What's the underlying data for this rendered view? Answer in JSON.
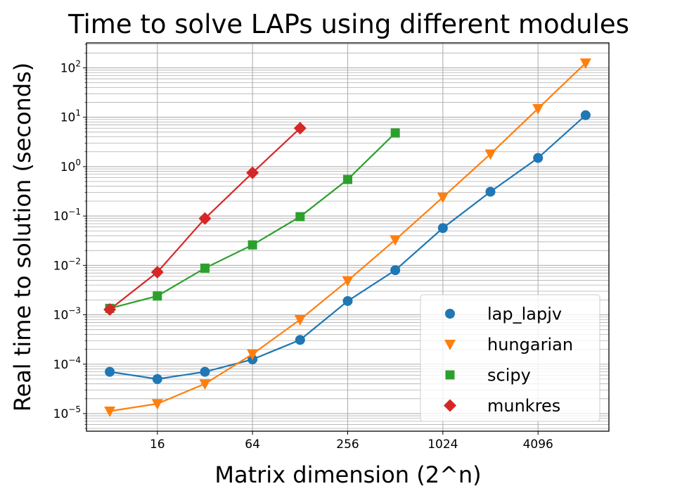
{
  "chart_data": {
    "type": "scatter",
    "title": "Time to solve LAPs using different modules",
    "xlabel": "Matrix dimension (2^n)",
    "ylabel": "Real time to solution (seconds)",
    "xscale": "log2",
    "yscale": "log10",
    "xlim": [
      5.7,
      11500
    ],
    "ylim": [
      4.4e-06,
      320
    ],
    "grid": true,
    "legend_placement": "lower right",
    "x_ticks": [
      16,
      64,
      256,
      1024,
      4096
    ],
    "x_tick_labels": [
      "16",
      "64",
      "256",
      "1024",
      "4096"
    ],
    "y_ticks": [
      1e-05,
      0.0001,
      0.001,
      0.01,
      0.1,
      1,
      10,
      100
    ],
    "y_tick_labels": [
      {
        "base": "10",
        "exp": "−5"
      },
      {
        "base": "10",
        "exp": "−4"
      },
      {
        "base": "10",
        "exp": "−3"
      },
      {
        "base": "10",
        "exp": "−2"
      },
      {
        "base": "10",
        "exp": "−1"
      },
      {
        "base": "10",
        "exp": "0"
      },
      {
        "base": "10",
        "exp": "1"
      },
      {
        "base": "10",
        "exp": "2"
      }
    ],
    "series": [
      {
        "name": "lap_lapjv",
        "marker": "circle",
        "color": "#1f77b4",
        "x": [
          8,
          16,
          32,
          64,
          128,
          256,
          512,
          1024,
          2048,
          4096,
          8192
        ],
        "y": [
          7e-05,
          5e-05,
          7e-05,
          0.000125,
          0.00031,
          0.0019,
          0.008,
          0.057,
          0.31,
          1.5,
          11
        ]
      },
      {
        "name": "hungarian",
        "marker": "triangle-down",
        "color": "#ff7f0e",
        "x": [
          8,
          16,
          32,
          64,
          128,
          256,
          512,
          1024,
          2048,
          4096,
          8192
        ],
        "y": [
          1.12e-05,
          1.58e-05,
          4e-05,
          0.00016,
          0.0008,
          0.0049,
          0.033,
          0.24,
          1.8,
          15,
          125
        ]
      },
      {
        "name": "scipy",
        "marker": "square",
        "color": "#2ca02c",
        "x": [
          8,
          16,
          32,
          64,
          128,
          256,
          512
        ],
        "y": [
          0.00135,
          0.0024,
          0.0088,
          0.026,
          0.097,
          0.55,
          4.8
        ]
      },
      {
        "name": "munkres",
        "marker": "diamond",
        "color": "#d62728",
        "x": [
          8,
          16,
          32,
          64,
          128
        ],
        "y": [
          0.00128,
          0.0073,
          0.089,
          0.75,
          6
        ]
      }
    ]
  }
}
